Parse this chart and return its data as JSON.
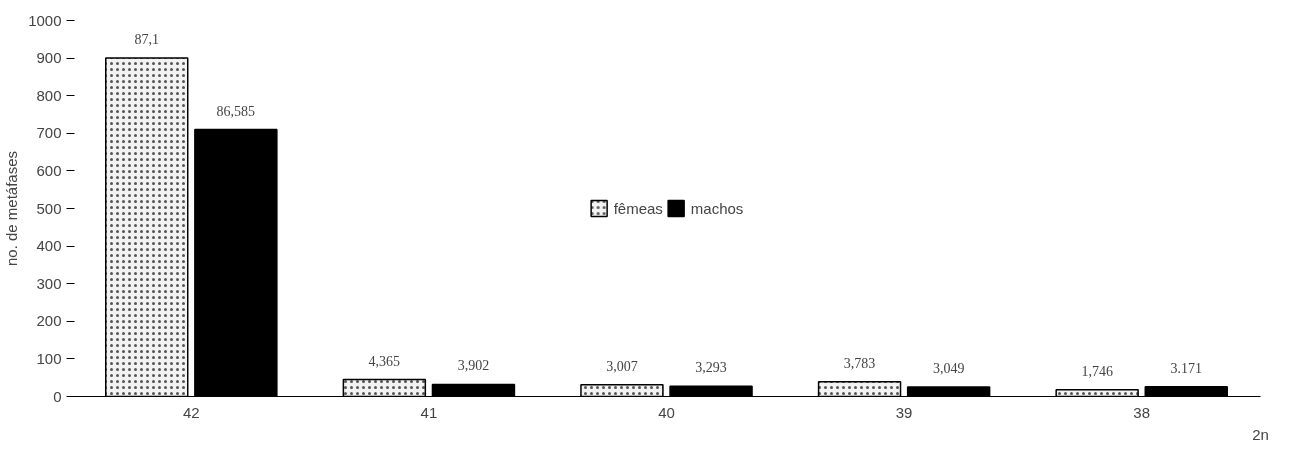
{
  "chart_data": {
    "type": "bar",
    "categories": [
      "42",
      "41",
      "40",
      "39",
      "38"
    ],
    "xlabel": "2n",
    "ylabel": "no. de metáfases",
    "series": [
      {
        "name": "fêmeas",
        "color": "#f2f2f2",
        "values": [
          900,
          45,
          31,
          39,
          18
        ]
      },
      {
        "name": "machos",
        "color": "#000000",
        "values": [
          710,
          32,
          27,
          25,
          26
        ]
      }
    ],
    "annotations": [
      {
        "text": "87,1",
        "x": "42",
        "y": 900
      },
      {
        "text": "86,585",
        "x": "42",
        "y": 710
      },
      {
        "text": "4,365",
        "x": "41",
        "y": 45
      },
      {
        "text": "3,902",
        "x": "41",
        "y": 32
      },
      {
        "text": "3,007",
        "x": "40",
        "y": 31
      },
      {
        "text": "3,293",
        "x": "40",
        "y": 27
      },
      {
        "text": "3,783",
        "x": "39",
        "y": 39
      },
      {
        "text": "3,049",
        "x": "39",
        "y": 25
      },
      {
        "text": "1,746",
        "x": "38",
        "y": 18
      },
      {
        "text": "3.171",
        "x": "38",
        "y": 26
      }
    ],
    "ylim": [
      0,
      1000
    ],
    "yticks": [
      0,
      100,
      200,
      300,
      400,
      500,
      600,
      700,
      800,
      900,
      1000
    ],
    "grid": false,
    "legend": "center"
  }
}
